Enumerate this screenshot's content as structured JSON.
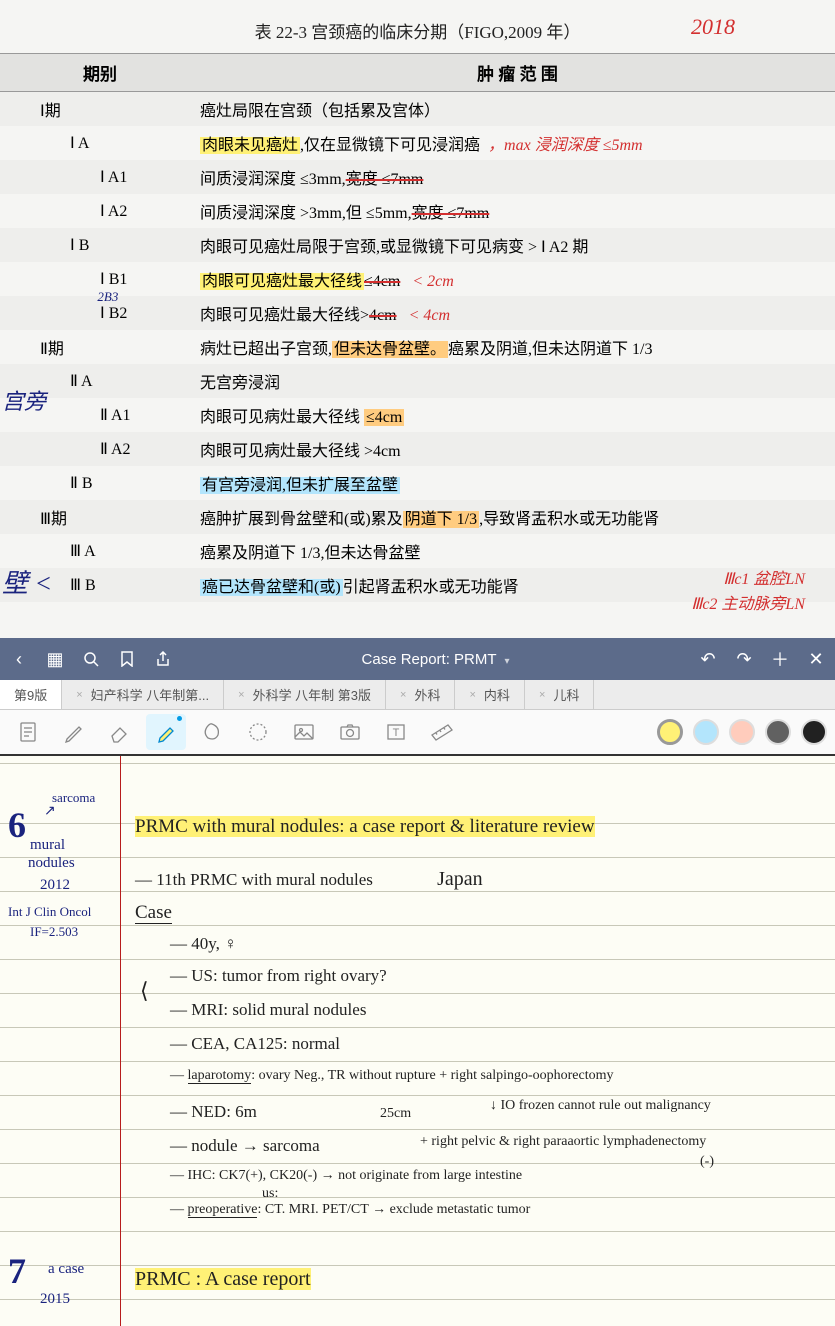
{
  "textbook": {
    "title": "表 22-3  宫颈癌的临床分期（FIGO,2009 年）",
    "hand_year": "2018",
    "col1": "期别",
    "col2": "肿 瘤 范 围",
    "rows": [
      {
        "stage": "Ⅰ期",
        "desc": "癌灶局限在宫颈（包括累及宫体）",
        "shade": true
      },
      {
        "stage": "Ⅰ A",
        "desc_hl": "肉眼未见癌灶",
        "desc2": ",仅在显微镜下可见浸润癌",
        "hand": "，max 浸润深度 ≤5mm"
      },
      {
        "stage": "Ⅰ A1",
        "desc": "间质浸润深度 ≤3mm,",
        "strike": "宽度 ≤7mm",
        "shade": true,
        "sub2": true
      },
      {
        "stage": "Ⅰ A2",
        "desc": "间质浸润深度 >3mm,但 ≤5mm,",
        "strike": "宽度 ≤7mm",
        "sub2": true
      },
      {
        "stage": "Ⅰ B",
        "desc": "肉眼可见癌灶局限于宫颈,或显微镜下可见病变 > Ⅰ A2 期",
        "shade": true
      },
      {
        "stage": "Ⅰ B1",
        "desc_hl": "肉眼可见癌灶最大径线",
        "strike": "≤4cm",
        "hand": "   < 2cm",
        "sub2": true
      },
      {
        "stage": "Ⅰ B2",
        "desc": "肉眼可见癌灶最大径线>",
        "strike": "4cm",
        "hand": "   < 4cm",
        "shade": true,
        "sub2": true,
        "note_blue": "2B3"
      },
      {
        "stage": "Ⅱ期",
        "desc": "病灶已超出子宫颈,",
        "desc_hl_o": "但未达骨盆壁。",
        "desc3": "癌累及阴道,但未达阴道下 1/3"
      },
      {
        "stage": "Ⅱ A",
        "desc": "无宫旁浸润",
        "shade": true
      },
      {
        "stage": "Ⅱ A1",
        "desc": "肉眼可见病灶最大径线 ",
        "desc_hl_o": "≤4cm",
        "sub2": true
      },
      {
        "stage": "Ⅱ A2",
        "desc": "肉眼可见病灶最大径线 >4cm",
        "shade": true,
        "sub2": true
      },
      {
        "stage": "Ⅱ B",
        "desc_hl_b": "有宫旁浸润,但未扩展至盆壁"
      },
      {
        "stage": "Ⅲ期",
        "desc": "癌肿扩展到骨盆壁和(或)累及",
        "desc_hl_o": "阴道下 1/3",
        "desc3": ",导致肾盂积水或无功能肾",
        "shade": true
      },
      {
        "stage": "Ⅲ A",
        "desc": "癌累及阴道下 1/3,但未达骨盆壁"
      },
      {
        "stage": "Ⅲ B",
        "desc_hl_b": "癌已达骨盆壁和(或)",
        "desc2": "引起肾盂积水或无功能肾",
        "shade": true
      }
    ],
    "margin_notes": {
      "blue1": "宫旁",
      "blue2": "壁 <",
      "red_iiic": "Ⅲc1  盆腔LN",
      "red_iiic2": "Ⅲc2  主动脉旁LN"
    }
  },
  "app": {
    "title": "Case Report: PRMT",
    "tabs": [
      {
        "label": "第9版",
        "active": true
      },
      {
        "label": "妇产科学 八年制第..."
      },
      {
        "label": "外科学 八年制 第3版"
      },
      {
        "label": "外科"
      },
      {
        "label": "内科"
      },
      {
        "label": "儿科"
      }
    ],
    "colors": [
      "#fff176",
      "#b3e5fc",
      "#ffccbc",
      "#616161",
      "#212121"
    ],
    "selected_color_index": 0
  },
  "notes": {
    "section6": {
      "num": "6",
      "side1": "sarcoma",
      "side2": "mural",
      "side3": "nodules",
      "side4": "2012",
      "side5": "Int J Clin Oncol",
      "side6": "IF=2.503",
      "title": "PRMC with mural nodules: a case report & literature review",
      "l1": "— 11th PRMC with mural nodules",
      "l1b": "Japan",
      "l2": "Case",
      "l3": "— 40y, ♀",
      "l4": "— US: tumor from right ovary?",
      "l5": "— MRI: solid mural nodules",
      "l6": "— CEA, CA125: normal",
      "l7a": "— ",
      "l7b": "laparotomy",
      "l7c": ": ovary Neg., TR without rupture + right salpingo-oophorectomy",
      "l8": "— NED: 6m",
      "l8b": "25cm",
      "l8c": "↓ IO frozen cannot rule out malignancy",
      "l9": "— nodule → sarcoma",
      "l9b": "+ right pelvic & right paraaortic lymphadenectomy",
      "l9c": "(-)",
      "l10": "— IHC: CK7(+), CK20(-) → not originate from large intestine",
      "l11a": "— ",
      "l11b": "preoperative",
      "l11c": ": CT. MRI. PET/CT → exclude metastatic tumor",
      "l11top": "us:"
    },
    "section7": {
      "num": "7",
      "side1": "a case",
      "side2": "2015",
      "title": "PRMC : A case report"
    }
  }
}
